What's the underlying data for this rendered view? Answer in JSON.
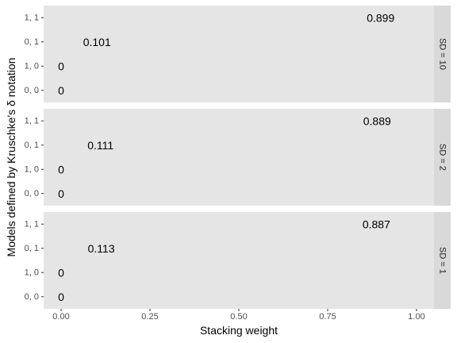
{
  "chart_data": {
    "type": "scatter",
    "geom": "text",
    "xlabel": "Stacking weight",
    "ylabel": "Models defined by Kruschke's δ notation",
    "xlim": [
      0,
      1
    ],
    "x_ticks": [
      "0.00",
      "0.25",
      "0.50",
      "0.75",
      "1.00"
    ],
    "x_tick_values": [
      0,
      0.25,
      0.5,
      0.75,
      1.0
    ],
    "categories": [
      "1, 1",
      "0, 1",
      "1, 0",
      "0, 0"
    ],
    "grid": false,
    "facets": [
      {
        "strip": "SD = 10",
        "points": [
          {
            "model": "1, 1",
            "x": 0.899,
            "label": "0.899"
          },
          {
            "model": "0, 1",
            "x": 0.101,
            "label": "0.101"
          },
          {
            "model": "1, 0",
            "x": 0,
            "label": "0"
          },
          {
            "model": "0, 0",
            "x": 0,
            "label": "0"
          }
        ]
      },
      {
        "strip": "SD = 2",
        "points": [
          {
            "model": "1, 1",
            "x": 0.889,
            "label": "0.889"
          },
          {
            "model": "0, 1",
            "x": 0.111,
            "label": "0.111"
          },
          {
            "model": "1, 0",
            "x": 0,
            "label": "0"
          },
          {
            "model": "0, 0",
            "x": 0,
            "label": "0"
          }
        ]
      },
      {
        "strip": "SD = 1",
        "points": [
          {
            "model": "1, 1",
            "x": 0.887,
            "label": "0.887"
          },
          {
            "model": "0, 1",
            "x": 0.113,
            "label": "0.113"
          },
          {
            "model": "1, 0",
            "x": 0,
            "label": "0"
          },
          {
            "model": "0, 0",
            "x": 0,
            "label": "0"
          }
        ]
      }
    ]
  }
}
